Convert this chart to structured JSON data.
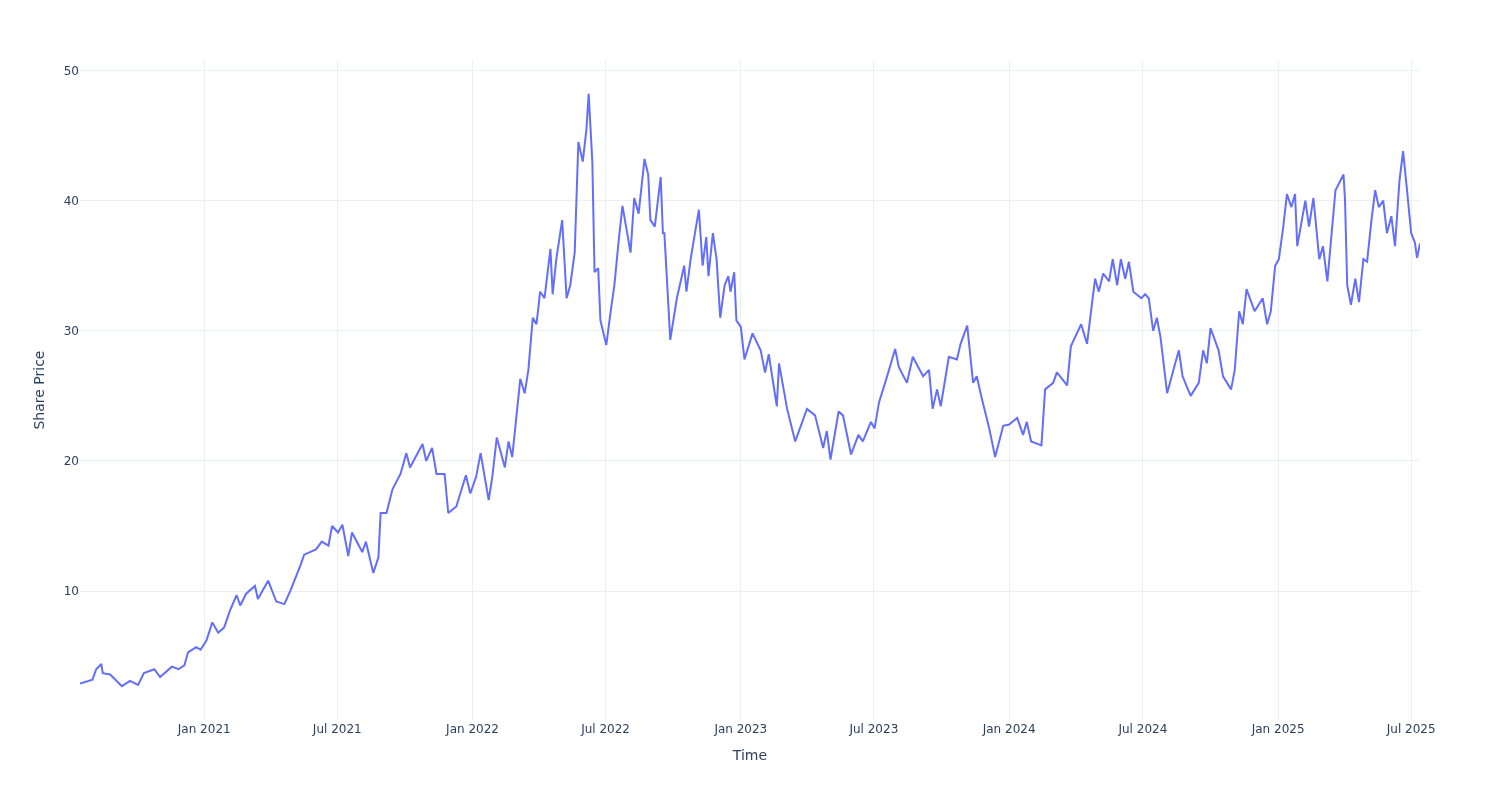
{
  "chart_data": {
    "type": "line",
    "xlabel": "Time",
    "ylabel": "Share Price",
    "xlim": [
      "2020-07-16",
      "2025-07-13"
    ],
    "xticks": [
      {
        "value": "2021-01-01",
        "label": "Jan 2021"
      },
      {
        "value": "2021-07-01",
        "label": "Jul 2021"
      },
      {
        "value": "2022-01-01",
        "label": "Jan 2022"
      },
      {
        "value": "2022-07-01",
        "label": "Jul 2022"
      },
      {
        "value": "2023-01-01",
        "label": "Jan 2023"
      },
      {
        "value": "2023-07-01",
        "label": "Jul 2023"
      },
      {
        "value": "2024-01-01",
        "label": "Jan 2024"
      },
      {
        "value": "2024-07-01",
        "label": "Jul 2024"
      },
      {
        "value": "2025-01-01",
        "label": "Jan 2025"
      },
      {
        "value": "2025-07-01",
        "label": "Jul 2025"
      }
    ],
    "ylim": [
      0.1,
      50.8
    ],
    "yticks": [
      10,
      20,
      30,
      40,
      50
    ],
    "grid": true,
    "marker": "none",
    "line_style": "solid",
    "series": [
      {
        "color": "#636efa",
        "x": [
          "2020-07-16",
          "2020-08-02",
          "2020-08-07",
          "2020-08-14",
          "2020-08-16",
          "2020-08-26",
          "2020-09-11",
          "2020-09-22",
          "2020-10-03",
          "2020-10-11",
          "2020-10-25",
          "2020-11-02",
          "2020-11-18",
          "2020-11-27",
          "2020-12-05",
          "2020-12-10",
          "2020-12-21",
          "2020-12-27",
          "2021-01-04",
          "2021-01-12",
          "2021-01-20",
          "2021-01-28",
          "2021-02-05",
          "2021-02-14",
          "2021-02-19",
          "2021-02-27",
          "2021-03-11",
          "2021-03-15",
          "2021-03-29",
          "2021-04-09",
          "2021-04-20",
          "2021-04-28",
          "2021-05-12",
          "2021-05-17",
          "2021-06-02",
          "2021-06-10",
          "2021-06-19",
          "2021-06-24",
          "2021-07-02",
          "2021-07-08",
          "2021-07-16",
          "2021-07-21",
          "2021-08-04",
          "2021-08-09",
          "2021-08-19",
          "2021-08-26",
          "2021-08-29",
          "2021-09-06",
          "2021-09-14",
          "2021-09-25",
          "2021-10-03",
          "2021-10-08",
          "2021-10-25",
          "2021-10-30",
          "2021-11-07",
          "2021-11-13",
          "2021-11-24",
          "2021-11-29",
          "2021-12-10",
          "2021-12-23",
          "2021-12-29",
          "2022-01-06",
          "2022-01-12",
          "2022-01-23",
          "2022-01-28",
          "2022-02-03",
          "2022-02-14",
          "2022-02-19",
          "2022-02-24",
          "2022-03-07",
          "2022-03-13",
          "2022-03-18",
          "2022-03-24",
          "2022-03-29",
          "2022-04-03",
          "2022-04-09",
          "2022-04-17",
          "2022-04-20",
          "2022-04-25",
          "2022-05-03",
          "2022-05-09",
          "2022-05-14",
          "2022-05-20",
          "2022-05-25",
          "2022-05-31",
          "2022-06-05",
          "2022-06-08",
          "2022-06-13",
          "2022-06-16",
          "2022-06-21",
          "2022-06-24",
          "2022-07-02",
          "2022-07-08",
          "2022-07-13",
          "2022-07-19",
          "2022-07-24",
          "2022-08-04",
          "2022-08-09",
          "2022-08-15",
          "2022-08-23",
          "2022-08-28",
          "2022-08-31",
          "2022-09-06",
          "2022-09-14",
          "2022-09-17",
          "2022-09-19",
          "2022-09-27",
          "2022-10-06",
          "2022-10-16",
          "2022-10-19",
          "2022-10-25",
          "2022-11-05",
          "2022-11-10",
          "2022-11-15",
          "2022-11-18",
          "2022-11-24",
          "2022-11-29",
          "2022-12-04",
          "2022-12-10",
          "2022-12-15",
          "2022-12-18",
          "2022-12-23",
          "2022-12-26",
          "2023-01-01",
          "2023-01-06",
          "2023-01-17",
          "2023-01-28",
          "2023-02-03",
          "2023-02-08",
          "2023-02-19",
          "2023-02-22",
          "2023-03-05",
          "2023-03-16",
          "2023-04-01",
          "2023-04-12",
          "2023-04-23",
          "2023-04-28",
          "2023-05-03",
          "2023-05-14",
          "2023-05-20",
          "2023-05-31",
          "2023-06-10",
          "2023-06-16",
          "2023-06-27",
          "2023-07-02",
          "2023-07-08",
          "2023-07-19",
          "2023-07-30",
          "2023-08-04",
          "2023-08-15",
          "2023-08-23",
          "2023-09-06",
          "2023-09-14",
          "2023-09-19",
          "2023-09-25",
          "2023-09-30",
          "2023-10-11",
          "2023-10-22",
          "2023-10-27",
          "2023-11-05",
          "2023-11-13",
          "2023-11-18",
          "2023-11-24",
          "2023-12-05",
          "2023-12-13",
          "2023-12-24",
          "2024-01-01",
          "2024-01-12",
          "2024-01-20",
          "2024-01-25",
          "2024-01-31",
          "2024-02-14",
          "2024-02-19",
          "2024-03-01",
          "2024-03-06",
          "2024-03-20",
          "2024-03-25",
          "2024-04-08",
          "2024-04-16",
          "2024-04-27",
          "2024-05-02",
          "2024-05-08",
          "2024-05-16",
          "2024-05-21",
          "2024-05-27",
          "2024-06-01",
          "2024-06-07",
          "2024-06-12",
          "2024-06-18",
          "2024-06-29",
          "2024-07-04",
          "2024-07-09",
          "2024-07-15",
          "2024-07-20",
          "2024-07-25",
          "2024-08-03",
          "2024-08-14",
          "2024-08-19",
          "2024-08-24",
          "2024-09-04",
          "2024-09-15",
          "2024-09-21",
          "2024-09-26",
          "2024-10-01",
          "2024-10-12",
          "2024-10-18",
          "2024-10-29",
          "2024-11-03",
          "2024-11-09",
          "2024-11-14",
          "2024-11-19",
          "2024-11-30",
          "2024-12-11",
          "2024-12-17",
          "2024-12-22",
          "2024-12-28",
          "2025-01-02",
          "2025-01-08",
          "2025-01-13",
          "2025-01-19",
          "2025-01-24",
          "2025-01-27",
          "2025-02-07",
          "2025-02-12",
          "2025-02-18",
          "2025-02-26",
          "2025-03-03",
          "2025-03-09",
          "2025-03-20",
          "2025-03-31",
          "2025-04-02",
          "2025-04-05",
          "2025-04-10",
          "2025-04-16",
          "2025-04-21",
          "2025-04-27",
          "2025-05-02",
          "2025-05-08",
          "2025-05-13",
          "2025-05-18",
          "2025-05-24",
          "2025-05-29",
          "2025-06-04",
          "2025-06-09",
          "2025-06-15",
          "2025-06-20",
          "2025-06-25",
          "2025-07-01",
          "2025-07-06",
          "2025-07-09",
          "2025-07-13"
        ],
        "values": [
          2.9,
          3.2,
          4.0,
          4.4,
          3.7,
          3.6,
          2.7,
          3.1,
          2.8,
          3.7,
          4.0,
          3.4,
          4.2,
          4.0,
          4.3,
          5.3,
          5.7,
          5.5,
          6.2,
          7.6,
          6.8,
          7.2,
          8.5,
          9.7,
          8.9,
          9.8,
          10.4,
          9.4,
          10.8,
          9.2,
          9.0,
          10.0,
          12.0,
          12.8,
          13.2,
          13.8,
          13.5,
          15.0,
          14.5,
          15.1,
          12.7,
          14.5,
          13.0,
          13.8,
          11.4,
          12.6,
          16.0,
          16.0,
          17.8,
          19.0,
          20.6,
          19.5,
          21.3,
          20.0,
          21.0,
          19.0,
          19.0,
          16.0,
          16.5,
          18.9,
          17.5,
          18.8,
          20.6,
          17.0,
          18.8,
          21.8,
          19.5,
          21.5,
          20.3,
          26.3,
          25.2,
          27.0,
          31.0,
          30.5,
          33.0,
          32.5,
          36.3,
          32.8,
          35.5,
          38.5,
          32.5,
          33.5,
          36.0,
          44.5,
          43.0,
          45.5,
          48.2,
          43.0,
          34.5,
          34.8,
          30.8,
          28.9,
          31.5,
          33.5,
          37.0,
          39.6,
          36.0,
          40.2,
          39.0,
          43.2,
          42.0,
          38.5,
          38.0,
          41.8,
          37.5,
          37.5,
          29.3,
          32.5,
          35.0,
          33.0,
          35.6,
          39.3,
          35.0,
          37.2,
          34.2,
          37.5,
          35.5,
          31.0,
          33.5,
          34.2,
          33.0,
          34.5,
          30.8,
          30.3,
          27.8,
          29.8,
          28.5,
          26.8,
          28.2,
          24.2,
          27.5,
          24.0,
          21.5,
          24.0,
          23.5,
          21.0,
          22.3,
          20.1,
          23.8,
          23.5,
          20.5,
          22.0,
          21.5,
          23.0,
          22.5,
          24.5,
          26.5,
          28.6,
          27.2,
          26.0,
          28.0,
          26.5,
          27.0,
          24.0,
          25.5,
          24.2,
          28.0,
          27.8,
          29.0,
          30.4,
          26.0,
          26.5,
          25.0,
          22.5,
          20.3,
          22.7,
          22.8,
          23.3,
          22.0,
          23.0,
          21.5,
          21.2,
          25.5,
          26.0,
          26.8,
          25.8,
          28.8,
          30.5,
          29.0,
          34.0,
          33.0,
          34.4,
          33.8,
          35.5,
          33.5,
          35.5,
          34.0,
          35.3,
          33.0,
          32.5,
          32.8,
          32.5,
          30.0,
          31.0,
          29.5,
          25.2,
          27.5,
          28.5,
          26.5,
          25.0,
          26.0,
          28.5,
          27.5,
          30.2,
          28.5,
          26.5,
          25.5,
          27.0,
          31.5,
          30.5,
          33.2,
          31.5,
          32.5,
          30.5,
          31.5,
          35.0,
          35.5,
          38.0,
          40.5,
          39.5,
          40.5,
          36.5,
          40.0,
          38.0,
          40.2,
          35.5,
          36.5,
          33.8,
          40.8,
          42.0,
          40.0,
          33.5,
          32.0,
          34.0,
          32.2,
          35.5,
          35.3,
          38.5,
          40.8,
          39.5,
          40.0,
          37.5,
          38.8,
          36.5,
          41.5,
          43.8,
          41.0,
          37.5,
          36.8,
          35.6,
          36.7
        ]
      }
    ]
  }
}
